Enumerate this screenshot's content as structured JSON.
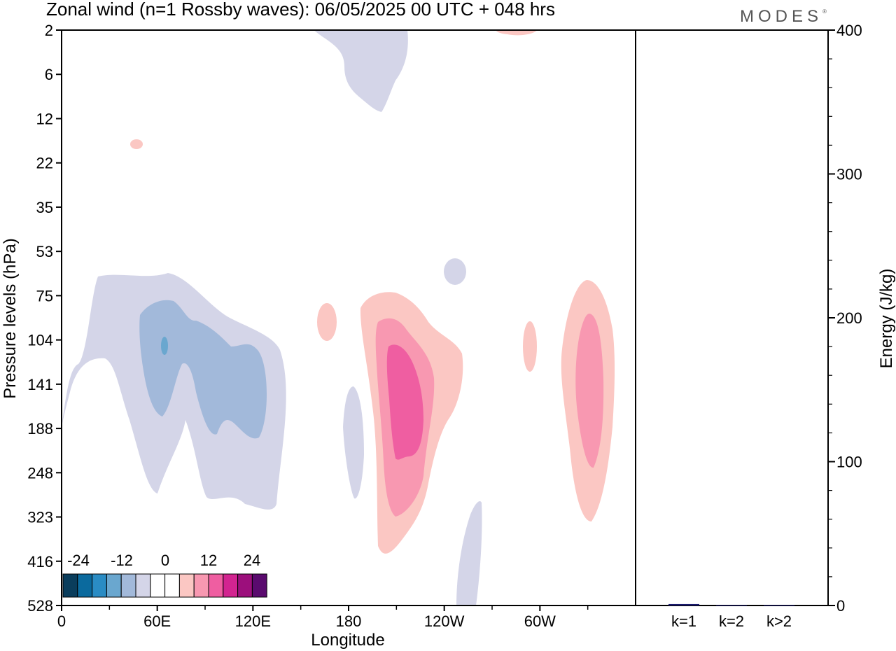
{
  "title": "Zonal wind (n=1 Rossby waves):  06/05/2025  00 UTC  + 048 hrs",
  "brand": "MODES",
  "chart_data": [
    {
      "type": "heatmap",
      "title": "Zonal wind (n=1 Rossby waves):  06/05/2025  00 UTC  + 048 hrs",
      "xlabel": "Longitude",
      "ylabel": "Pressure levels (hPa)",
      "x_ticks": [
        "0",
        "60E",
        "120E",
        "180",
        "120W",
        "60W"
      ],
      "x_tick_degrees": [
        0,
        60,
        120,
        180,
        240,
        300
      ],
      "xlim": [
        0,
        360
      ],
      "y_ticks": [
        "2",
        "6",
        "12",
        "22",
        "35",
        "53",
        "75",
        "104",
        "141",
        "188",
        "248",
        "323",
        "416",
        "528"
      ],
      "y_axis": "pressure levels, top to bottom",
      "colorbar": {
        "labels": [
          "-24",
          "-12",
          "0",
          "12",
          "24"
        ],
        "colors": [
          "#0a3d5c",
          "#0b6a9e",
          "#2a8cc4",
          "#6aa7cf",
          "#a2b9da",
          "#d4d5e8",
          "#ffffff",
          "#ffffff",
          "#fbc7c3",
          "#f898b1",
          "#ef5ea1",
          "#d22490",
          "#9c0f7c",
          "#5a0a6e"
        ]
      },
      "contours": [
        {
          "color": "#d4d5e8",
          "description": "negative anomaly, 0E-130E, 75-323 hPa"
        },
        {
          "color": "#a2b9da",
          "description": "negative anomaly core, 50E-125E, 75-248 hPa"
        },
        {
          "color": "#6aa7cf",
          "description": "small core near 65E, 104 hPa"
        },
        {
          "color": "#fbc7c3",
          "description": "positive anomaly, 185E-230E (near 180-120W), 75-416 hPa"
        },
        {
          "color": "#f898b1",
          "description": "inner positive anomaly"
        },
        {
          "color": "#ef5ea1",
          "description": "strongest positive core near 160W, 104-248 hPa"
        },
        {
          "color": "#fbc7c3",
          "description": "positive anomaly near 40W, 75-323 hPa"
        },
        {
          "color": "#f898b1",
          "description": "core near 35W, 104-248 hPa"
        }
      ]
    },
    {
      "type": "bar",
      "categories": [
        "k=1",
        "k=2",
        "k>2"
      ],
      "values": [
        1.0,
        0.3,
        0.3
      ],
      "ylabel": "Energy (J/kg)",
      "ylim": [
        0,
        400
      ],
      "y_ticks": [
        "0",
        "100",
        "200",
        "300",
        "400"
      ],
      "bar_color": "#1a1a6e"
    }
  ]
}
